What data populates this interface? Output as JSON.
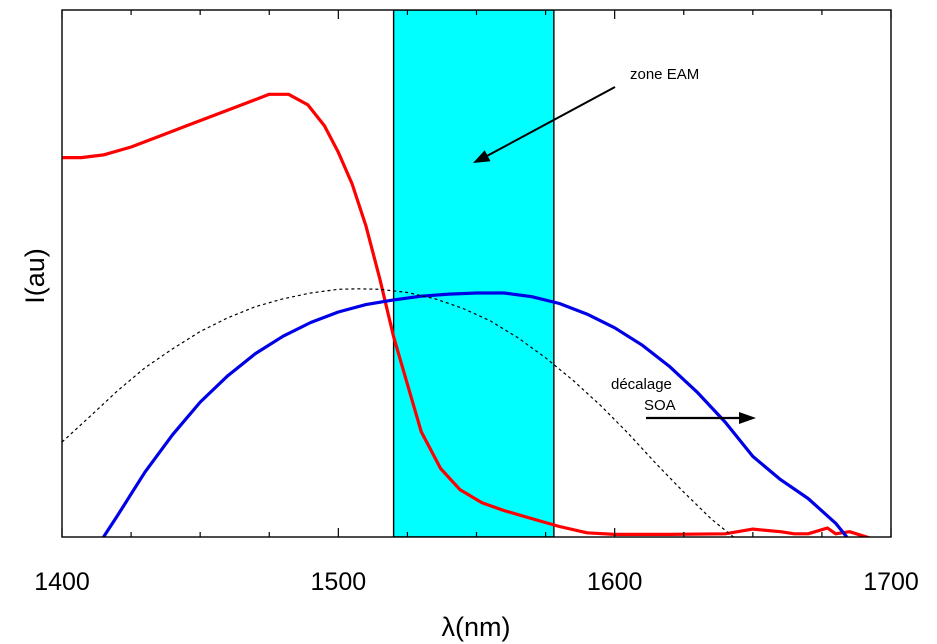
{
  "chart_data": {
    "type": "line",
    "title": "",
    "xlabel": "λ(nm)",
    "ylabel": "I(au)",
    "xlim": [
      1400,
      1700
    ],
    "ylim": [
      0,
      1
    ],
    "x_ticks": [
      1400,
      1500,
      1600,
      1700
    ],
    "x_tick_labels": [
      "1400",
      "1500",
      "1600",
      "1700"
    ],
    "y_tick_labels": [],
    "grid": false,
    "highlight_band": {
      "x": [
        1520,
        1578
      ],
      "color": "#00ffff"
    },
    "series": [
      {
        "color": "#ff0000",
        "style": "solid",
        "x": [
          1400,
          1407,
          1415,
          1425,
          1435,
          1445,
          1455,
          1465,
          1475,
          1482,
          1489,
          1495,
          1500,
          1505,
          1510,
          1515,
          1520,
          1525,
          1530,
          1537,
          1544,
          1552,
          1560,
          1570,
          1580,
          1590,
          1600,
          1620,
          1640,
          1650,
          1660,
          1665,
          1670,
          1677,
          1680,
          1685,
          1693
        ],
        "y": [
          0.72,
          0.72,
          0.725,
          0.74,
          0.76,
          0.78,
          0.8,
          0.82,
          0.84,
          0.84,
          0.82,
          0.78,
          0.73,
          0.67,
          0.59,
          0.49,
          0.38,
          0.29,
          0.2,
          0.13,
          0.09,
          0.065,
          0.05,
          0.035,
          0.02,
          0.008,
          0.005,
          0.005,
          0.006,
          0.015,
          0.01,
          0.006,
          0.006,
          0.017,
          0.006,
          0.01,
          -0.003
        ]
      },
      {
        "color": "#0000e6",
        "style": "solid",
        "x": [
          1415,
          1420,
          1430,
          1440,
          1450,
          1460,
          1470,
          1480,
          1490,
          1500,
          1510,
          1520,
          1530,
          1540,
          1550,
          1560,
          1570,
          1580,
          1590,
          1600,
          1610,
          1620,
          1630,
          1640,
          1650,
          1660,
          1670,
          1680,
          1684
        ],
        "y": [
          0.0,
          0.04,
          0.123,
          0.194,
          0.256,
          0.306,
          0.348,
          0.381,
          0.407,
          0.427,
          0.441,
          0.45,
          0.457,
          0.461,
          0.463,
          0.463,
          0.456,
          0.443,
          0.423,
          0.397,
          0.364,
          0.323,
          0.274,
          0.218,
          0.153,
          0.109,
          0.073,
          0.026,
          0.0
        ]
      },
      {
        "color": "#000000",
        "style": "dashed",
        "x": [
          1400,
          1410,
          1420,
          1430,
          1440,
          1450,
          1460,
          1470,
          1480,
          1490,
          1500,
          1507,
          1515,
          1525,
          1535,
          1545,
          1555,
          1565,
          1575,
          1585,
          1595,
          1605,
          1615,
          1625,
          1635,
          1643
        ],
        "y": [
          0.18,
          0.228,
          0.277,
          0.321,
          0.357,
          0.39,
          0.416,
          0.437,
          0.452,
          0.463,
          0.47,
          0.471,
          0.47,
          0.464,
          0.452,
          0.434,
          0.41,
          0.378,
          0.34,
          0.297,
          0.249,
          0.196,
          0.139,
          0.085,
          0.034,
          0.0
        ]
      }
    ],
    "annotations": [
      {
        "text": "zone EAM"
      },
      {
        "text": "décalage"
      },
      {
        "text": "SOA"
      }
    ]
  }
}
